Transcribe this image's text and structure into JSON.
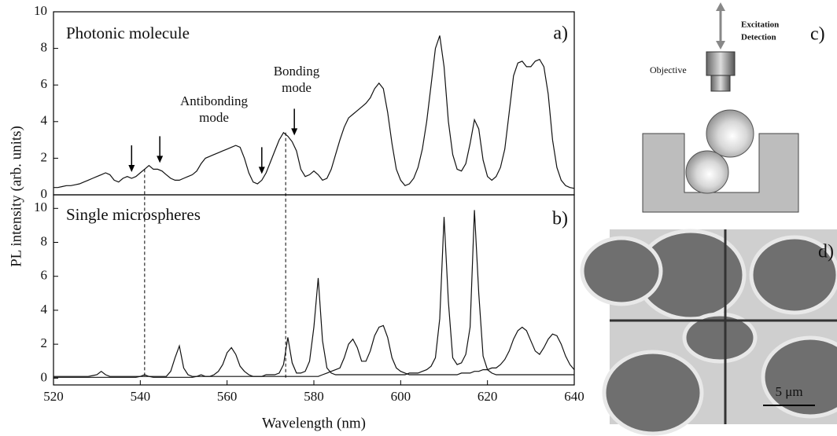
{
  "chart_data": [
    {
      "type": "line",
      "title": "Photonic molecule",
      "panel_label": "a)",
      "y_label": "PL intensity (arb. units)",
      "annotations": [
        "Antibonding mode",
        "Bonding mode"
      ],
      "arrows": [
        538,
        544.5,
        568,
        575.5
      ],
      "dashed_lines": [
        541,
        573.5
      ],
      "xlim": [
        520,
        640
      ],
      "ylim": [
        0,
        10
      ],
      "yticks": [
        0,
        2,
        4,
        6,
        8,
        10
      ],
      "x": [
        520,
        521,
        522,
        523,
        524,
        525,
        526,
        527,
        528,
        529,
        530,
        531,
        532,
        533,
        534,
        535,
        536,
        537,
        538,
        539,
        540,
        541,
        542,
        543,
        544,
        545,
        546,
        547,
        548,
        549,
        550,
        551,
        552,
        553,
        554,
        555,
        556,
        557,
        558,
        559,
        560,
        561,
        562,
        563,
        564,
        565,
        566,
        567,
        568,
        569,
        570,
        571,
        572,
        573,
        574,
        575,
        576,
        577,
        578,
        579,
        580,
        581,
        582,
        583,
        584,
        585,
        586,
        587,
        588,
        589,
        590,
        591,
        592,
        593,
        594,
        595,
        596,
        597,
        598,
        599,
        600,
        601,
        602,
        603,
        604,
        605,
        606,
        607,
        608,
        609,
        610,
        611,
        612,
        613,
        614,
        615,
        616,
        617,
        618,
        619,
        620,
        621,
        622,
        623,
        624,
        625,
        626,
        627,
        628,
        629,
        630,
        631,
        632,
        633,
        634,
        635,
        636,
        637,
        638,
        639,
        640
      ],
      "series": [
        {
          "color": "#111111",
          "values": [
            0.4,
            0.4,
            0.45,
            0.5,
            0.5,
            0.55,
            0.6,
            0.7,
            0.8,
            0.9,
            1.0,
            1.1,
            1.2,
            1.1,
            0.8,
            0.7,
            0.9,
            1.0,
            0.9,
            1.0,
            1.2,
            1.4,
            1.6,
            1.4,
            1.4,
            1.3,
            1.1,
            0.9,
            0.8,
            0.8,
            0.9,
            1.0,
            1.1,
            1.3,
            1.7,
            2.0,
            2.1,
            2.2,
            2.3,
            2.4,
            2.5,
            2.6,
            2.7,
            2.6,
            2.0,
            1.2,
            0.7,
            0.6,
            0.8,
            1.2,
            1.8,
            2.4,
            3.0,
            3.4,
            3.2,
            2.9,
            2.4,
            1.4,
            1.0,
            1.1,
            1.3,
            1.1,
            0.8,
            0.9,
            1.4,
            2.2,
            3.0,
            3.7,
            4.2,
            4.4,
            4.6,
            4.8,
            5.0,
            5.3,
            5.8,
            6.1,
            5.8,
            4.5,
            2.8,
            1.4,
            0.8,
            0.5,
            0.6,
            0.9,
            1.5,
            2.5,
            4.0,
            6.0,
            8.0,
            8.7,
            7.0,
            4.0,
            2.2,
            1.4,
            1.3,
            1.7,
            2.8,
            4.1,
            3.6,
            1.9,
            1.0,
            0.8,
            1.0,
            1.5,
            2.5,
            4.5,
            6.5,
            7.2,
            7.3,
            7.0,
            7.0,
            7.3,
            7.4,
            7.0,
            5.5,
            3.0,
            1.5,
            0.8,
            0.5,
            0.4,
            0.35
          ]
        }
      ]
    },
    {
      "type": "line",
      "title": "Single microspheres",
      "panel_label": "b)",
      "x_label": "Wavelength (nm)",
      "xlim": [
        520,
        640
      ],
      "xticks": [
        520,
        540,
        560,
        580,
        600,
        620,
        640
      ],
      "ylim": [
        -0.4,
        10.8
      ],
      "yticks": [
        0,
        2,
        4,
        6,
        8,
        10
      ],
      "x": [
        520,
        521,
        522,
        523,
        524,
        525,
        526,
        527,
        528,
        529,
        530,
        531,
        532,
        533,
        534,
        535,
        536,
        537,
        538,
        539,
        540,
        541,
        542,
        543,
        544,
        545,
        546,
        547,
        548,
        549,
        550,
        551,
        552,
        553,
        554,
        555,
        556,
        557,
        558,
        559,
        560,
        561,
        562,
        563,
        564,
        565,
        566,
        567,
        568,
        569,
        570,
        571,
        572,
        573,
        574,
        575,
        576,
        577,
        578,
        579,
        580,
        581,
        582,
        583,
        584,
        585,
        586,
        587,
        588,
        589,
        590,
        591,
        592,
        593,
        594,
        595,
        596,
        597,
        598,
        599,
        600,
        601,
        602,
        603,
        604,
        605,
        606,
        607,
        608,
        609,
        610,
        611,
        612,
        613,
        614,
        615,
        616,
        617,
        618,
        619,
        620,
        621,
        622,
        623,
        624,
        625,
        626,
        627,
        628,
        629,
        630,
        631,
        632,
        633,
        634,
        635,
        636,
        637,
        638,
        639,
        640
      ],
      "series": [
        {
          "color": "#111111",
          "values": [
            0.1,
            0.1,
            0.1,
            0.1,
            0.1,
            0.1,
            0.1,
            0.1,
            0.1,
            0.15,
            0.2,
            0.4,
            0.2,
            0.1,
            0.1,
            0.1,
            0.1,
            0.1,
            0.1,
            0.1,
            0.1,
            0.1,
            0.1,
            0.1,
            0.1,
            0.1,
            0.1,
            0.4,
            1.2,
            1.9,
            0.6,
            0.2,
            0.1,
            0.1,
            0.1,
            0.1,
            0.1,
            0.1,
            0.1,
            0.1,
            0.1,
            0.1,
            0.1,
            0.1,
            0.1,
            0.1,
            0.1,
            0.1,
            0.1,
            0.2,
            0.2,
            0.2,
            0.3,
            0.8,
            2.4,
            0.9,
            0.3,
            0.3,
            0.4,
            1.0,
            3.0,
            5.9,
            2.2,
            0.6,
            0.3,
            0.2,
            0.2,
            0.2,
            0.2,
            0.2,
            0.2,
            0.2,
            0.2,
            0.2,
            0.2,
            0.2,
            0.2,
            0.2,
            0.2,
            0.2,
            0.2,
            0.2,
            0.3,
            0.3,
            0.3,
            0.4,
            0.5,
            0.7,
            1.2,
            3.5,
            9.5,
            4.5,
            1.2,
            0.8,
            0.9,
            1.4,
            3.0,
            9.9,
            5.0,
            1.3,
            0.5,
            0.3,
            0.2,
            0.2,
            0.2,
            0.2,
            0.2,
            0.2,
            0.2,
            0.2,
            0.2,
            0.2,
            0.2,
            0.2,
            0.2,
            0.2,
            0.2,
            0.2,
            0.2,
            0.2,
            0.2
          ]
        },
        {
          "color": "#111111",
          "values": [
            0.05,
            0.05,
            0.05,
            0.05,
            0.05,
            0.05,
            0.05,
            0.05,
            0.05,
            0.05,
            0.05,
            0.05,
            0.05,
            0.05,
            0.05,
            0.05,
            0.05,
            0.05,
            0.05,
            0.05,
            0.1,
            0.2,
            0.1,
            0.05,
            0.05,
            0.05,
            0.05,
            0.05,
            0.05,
            0.05,
            0.05,
            0.05,
            0.05,
            0.1,
            0.2,
            0.1,
            0.1,
            0.2,
            0.4,
            0.8,
            1.5,
            1.8,
            1.4,
            0.7,
            0.4,
            0.2,
            0.1,
            0.1,
            0.1,
            0.1,
            0.1,
            0.1,
            0.1,
            0.1,
            0.1,
            0.1,
            0.1,
            0.1,
            0.1,
            0.1,
            0.1,
            0.1,
            0.2,
            0.3,
            0.4,
            0.5,
            0.6,
            1.2,
            2.0,
            2.3,
            1.8,
            1.0,
            1.0,
            1.6,
            2.5,
            3.0,
            3.1,
            2.4,
            1.2,
            0.6,
            0.4,
            0.3,
            0.2,
            0.2,
            0.2,
            0.2,
            0.2,
            0.2,
            0.2,
            0.2,
            0.2,
            0.2,
            0.2,
            0.2,
            0.3,
            0.3,
            0.3,
            0.4,
            0.4,
            0.5,
            0.5,
            0.6,
            0.6,
            0.8,
            1.1,
            1.6,
            2.3,
            2.8,
            3.0,
            2.8,
            2.2,
            1.6,
            1.4,
            1.8,
            2.3,
            2.6,
            2.5,
            2.0,
            1.3,
            0.8,
            0.5
          ]
        }
      ]
    }
  ],
  "schematic": {
    "label": "c)",
    "excitation": "Excitation",
    "detection": "Detection",
    "objective": "Objective"
  },
  "micrograph": {
    "label": "d)",
    "scale_bar": "5 μm"
  }
}
